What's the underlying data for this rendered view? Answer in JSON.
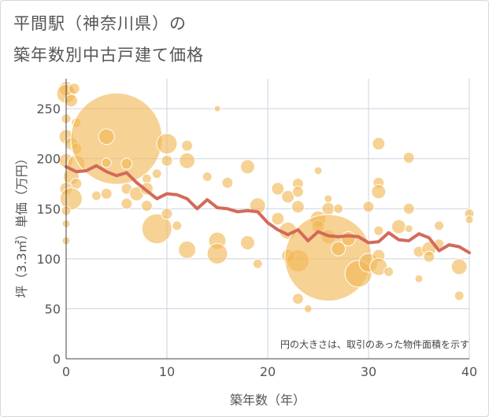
{
  "title": {
    "line1": "平間駅（神奈川県）の",
    "line2": "築年数別中古戸建て価格"
  },
  "note": "円の大きさは、取引のあった物件面積を示す",
  "colors": {
    "bubble": "#f2b654",
    "trend": "#d36a5a",
    "grid": "#c9d3df",
    "plot_bg": "#ffffff"
  },
  "chart_data": {
    "type": "scatter",
    "xlabel": "築年数（年）",
    "ylabel": "坪（3.3㎡）単価（万円）",
    "xlim": [
      0,
      40
    ],
    "ylim": [
      0,
      280
    ],
    "xticks": [
      0,
      10,
      20,
      30,
      40
    ],
    "yticks": [
      0,
      50,
      100,
      150,
      200,
      250
    ],
    "grid": true,
    "bubbles": [
      {
        "x": 0,
        "y": 270,
        "r": 9
      },
      {
        "x": 0,
        "y": 265,
        "r": 12
      },
      {
        "x": 0.5,
        "y": 258,
        "r": 8
      },
      {
        "x": 0.8,
        "y": 270,
        "r": 7
      },
      {
        "x": 0,
        "y": 240,
        "r": 6
      },
      {
        "x": 1,
        "y": 236,
        "r": 6
      },
      {
        "x": 0,
        "y": 222,
        "r": 9
      },
      {
        "x": 0.5,
        "y": 215,
        "r": 8
      },
      {
        "x": 1,
        "y": 210,
        "r": 7
      },
      {
        "x": 0,
        "y": 198,
        "r": 9
      },
      {
        "x": 1,
        "y": 195,
        "r": 11
      },
      {
        "x": 0.5,
        "y": 182,
        "r": 10
      },
      {
        "x": 1,
        "y": 175,
        "r": 7
      },
      {
        "x": 0,
        "y": 170,
        "r": 8
      },
      {
        "x": 0.5,
        "y": 160,
        "r": 14
      },
      {
        "x": 0,
        "y": 148,
        "r": 6
      },
      {
        "x": 0,
        "y": 135,
        "r": 5
      },
      {
        "x": 0,
        "y": 118,
        "r": 5
      },
      {
        "x": 3,
        "y": 163,
        "r": 6
      },
      {
        "x": 4,
        "y": 165,
        "r": 7
      },
      {
        "x": 5,
        "y": 220,
        "r": 58
      },
      {
        "x": 4,
        "y": 222,
        "r": 10
      },
      {
        "x": 4,
        "y": 196,
        "r": 6
      },
      {
        "x": 6,
        "y": 195,
        "r": 7
      },
      {
        "x": 6,
        "y": 170,
        "r": 7
      },
      {
        "x": 6,
        "y": 155,
        "r": 7
      },
      {
        "x": 7,
        "y": 165,
        "r": 9
      },
      {
        "x": 8,
        "y": 180,
        "r": 6
      },
      {
        "x": 8,
        "y": 170,
        "r": 8
      },
      {
        "x": 8,
        "y": 153,
        "r": 7
      },
      {
        "x": 9,
        "y": 185,
        "r": 6
      },
      {
        "x": 9,
        "y": 130,
        "r": 19
      },
      {
        "x": 10,
        "y": 215,
        "r": 13
      },
      {
        "x": 10,
        "y": 198,
        "r": 7
      },
      {
        "x": 10,
        "y": 145,
        "r": 7
      },
      {
        "x": 11,
        "y": 133,
        "r": 6
      },
      {
        "x": 12,
        "y": 213,
        "r": 7
      },
      {
        "x": 12,
        "y": 198,
        "r": 10
      },
      {
        "x": 12,
        "y": 109,
        "r": 11
      },
      {
        "x": 14,
        "y": 182,
        "r": 6
      },
      {
        "x": 15,
        "y": 250,
        "r": 4
      },
      {
        "x": 15,
        "y": 118,
        "r": 11
      },
      {
        "x": 15,
        "y": 105,
        "r": 13
      },
      {
        "x": 16,
        "y": 176,
        "r": 7
      },
      {
        "x": 18,
        "y": 192,
        "r": 9
      },
      {
        "x": 18,
        "y": 116,
        "r": 9
      },
      {
        "x": 19,
        "y": 153,
        "r": 10
      },
      {
        "x": 19,
        "y": 95,
        "r": 6
      },
      {
        "x": 21,
        "y": 170,
        "r": 8
      },
      {
        "x": 21,
        "y": 140,
        "r": 8
      },
      {
        "x": 22,
        "y": 162,
        "r": 8
      },
      {
        "x": 22,
        "y": 128,
        "r": 11
      },
      {
        "x": 22,
        "y": 103,
        "r": 8
      },
      {
        "x": 23,
        "y": 175,
        "r": 7
      },
      {
        "x": 23,
        "y": 167,
        "r": 7
      },
      {
        "x": 23,
        "y": 152,
        "r": 8
      },
      {
        "x": 23,
        "y": 98,
        "r": 14
      },
      {
        "x": 23,
        "y": 60,
        "r": 7
      },
      {
        "x": 24,
        "y": 50,
        "r": 5
      },
      {
        "x": 25,
        "y": 188,
        "r": 5
      },
      {
        "x": 25,
        "y": 140,
        "r": 10
      },
      {
        "x": 25,
        "y": 132,
        "r": 8
      },
      {
        "x": 26,
        "y": 160,
        "r": 5
      },
      {
        "x": 26,
        "y": 150,
        "r": 8
      },
      {
        "x": 26,
        "y": 122,
        "r": 9
      },
      {
        "x": 26,
        "y": 101,
        "r": 55
      },
      {
        "x": 27,
        "y": 150,
        "r": 6
      },
      {
        "x": 27,
        "y": 110,
        "r": 9
      },
      {
        "x": 28,
        "y": 120,
        "r": 9
      },
      {
        "x": 29,
        "y": 85,
        "r": 17
      },
      {
        "x": 30,
        "y": 152,
        "r": 7
      },
      {
        "x": 30,
        "y": 96,
        "r": 12
      },
      {
        "x": 31,
        "y": 215,
        "r": 8
      },
      {
        "x": 31,
        "y": 176,
        "r": 7
      },
      {
        "x": 31,
        "y": 167,
        "r": 9
      },
      {
        "x": 31,
        "y": 128,
        "r": 6
      },
      {
        "x": 31,
        "y": 103,
        "r": 8
      },
      {
        "x": 31,
        "y": 92,
        "r": 11
      },
      {
        "x": 32,
        "y": 87,
        "r": 6
      },
      {
        "x": 33,
        "y": 132,
        "r": 9
      },
      {
        "x": 34,
        "y": 201,
        "r": 7
      },
      {
        "x": 34,
        "y": 150,
        "r": 7
      },
      {
        "x": 34,
        "y": 130,
        "r": 5
      },
      {
        "x": 35,
        "y": 80,
        "r": 5
      },
      {
        "x": 35,
        "y": 107,
        "r": 7
      },
      {
        "x": 36,
        "y": 110,
        "r": 9
      },
      {
        "x": 36,
        "y": 102,
        "r": 7
      },
      {
        "x": 37,
        "y": 133,
        "r": 6
      },
      {
        "x": 37,
        "y": 115,
        "r": 6
      },
      {
        "x": 39,
        "y": 92,
        "r": 10
      },
      {
        "x": 39,
        "y": 63,
        "r": 6
      },
      {
        "x": 40,
        "y": 145,
        "r": 6
      },
      {
        "x": 40,
        "y": 139,
        "r": 5
      }
    ],
    "trend": {
      "x": [
        0,
        1,
        2,
        3,
        4,
        5,
        6,
        7,
        8,
        9,
        10,
        11,
        12,
        13,
        14,
        15,
        16,
        17,
        18,
        19,
        20,
        21,
        22,
        23,
        24,
        25,
        26,
        27,
        28,
        29,
        30,
        31,
        32,
        33,
        34,
        35,
        36,
        37,
        38,
        39,
        40
      ],
      "y": [
        192,
        187,
        188,
        193,
        187,
        183,
        186,
        176,
        168,
        160,
        165,
        164,
        160,
        150,
        159,
        151,
        150,
        147,
        148,
        147,
        136,
        129,
        124,
        129,
        118,
        127,
        123,
        122,
        123,
        122,
        116,
        117,
        126,
        119,
        118,
        125,
        121,
        108,
        114,
        112,
        106
      ]
    }
  }
}
